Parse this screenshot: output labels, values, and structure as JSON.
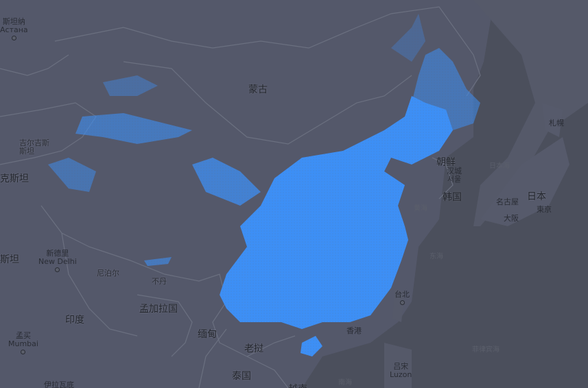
{
  "map": {
    "colors": {
      "land": "#55596a",
      "water": "#4b4f5c",
      "border": "#6b7080",
      "coverage": "#3d8ff5"
    },
    "countries": {
      "mongolia": "蒙古",
      "india": "印度",
      "bangladesh": "孟加拉国",
      "burma": "缅甸",
      "laos": "老挝",
      "thailand": "泰国",
      "nepal": "尼泊尔",
      "bhutan": "不丹",
      "north_korea": "朝鲜",
      "south_korea": "韩国",
      "japan": "日本",
      "kyrgyzstan": "吉尔吉斯斯坦",
      "kazakhstan_zh": "哈萨克斯坦",
      "kazakhstan_part": "克斯坦",
      "pakistan_part": "斯坦",
      "vietnam_part": "越南"
    },
    "seas": {
      "japan_sea": "日本海",
      "yellow_sea": "黄海",
      "east_sea": "东海",
      "south_sea": "南海",
      "philippine_sea": "菲律宾海"
    },
    "cities": {
      "astana_zh": "斯坦纳",
      "astana_en": "Астана",
      "new_delhi_zh": "新德里",
      "new_delhi_en": "New Delhi",
      "mumbai_zh": "孟买",
      "mumbai_en": "Mumbai",
      "seoul_zh": "汉城",
      "seoul_alt": "서울",
      "hongkong": "香港",
      "taipei": "台北",
      "luzon_zh": "吕宋",
      "luzon_en": "Luzon",
      "nagoya": "名古屋",
      "osaka": "大阪",
      "tokyo": "東京",
      "sapporo": "札幌",
      "pak_partial": "坦",
      "myanmar_bottom": "伊拉瓦底"
    }
  }
}
